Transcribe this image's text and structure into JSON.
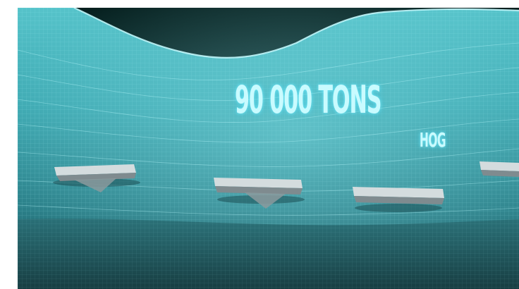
{
  "caption": {
    "headline": "90 000 TONS",
    "unit": "HOG"
  },
  "colors": {
    "void": "#08282c",
    "water_surface": "#3da6b0",
    "water_deep": "#1d5559",
    "mesh_line": "#9ff2f6",
    "text_glow": "#c9fbff",
    "barge_top": "#d4dcde",
    "barge_side": "#7f8b8f"
  },
  "icons": {
    "barge": "barge-icon"
  }
}
